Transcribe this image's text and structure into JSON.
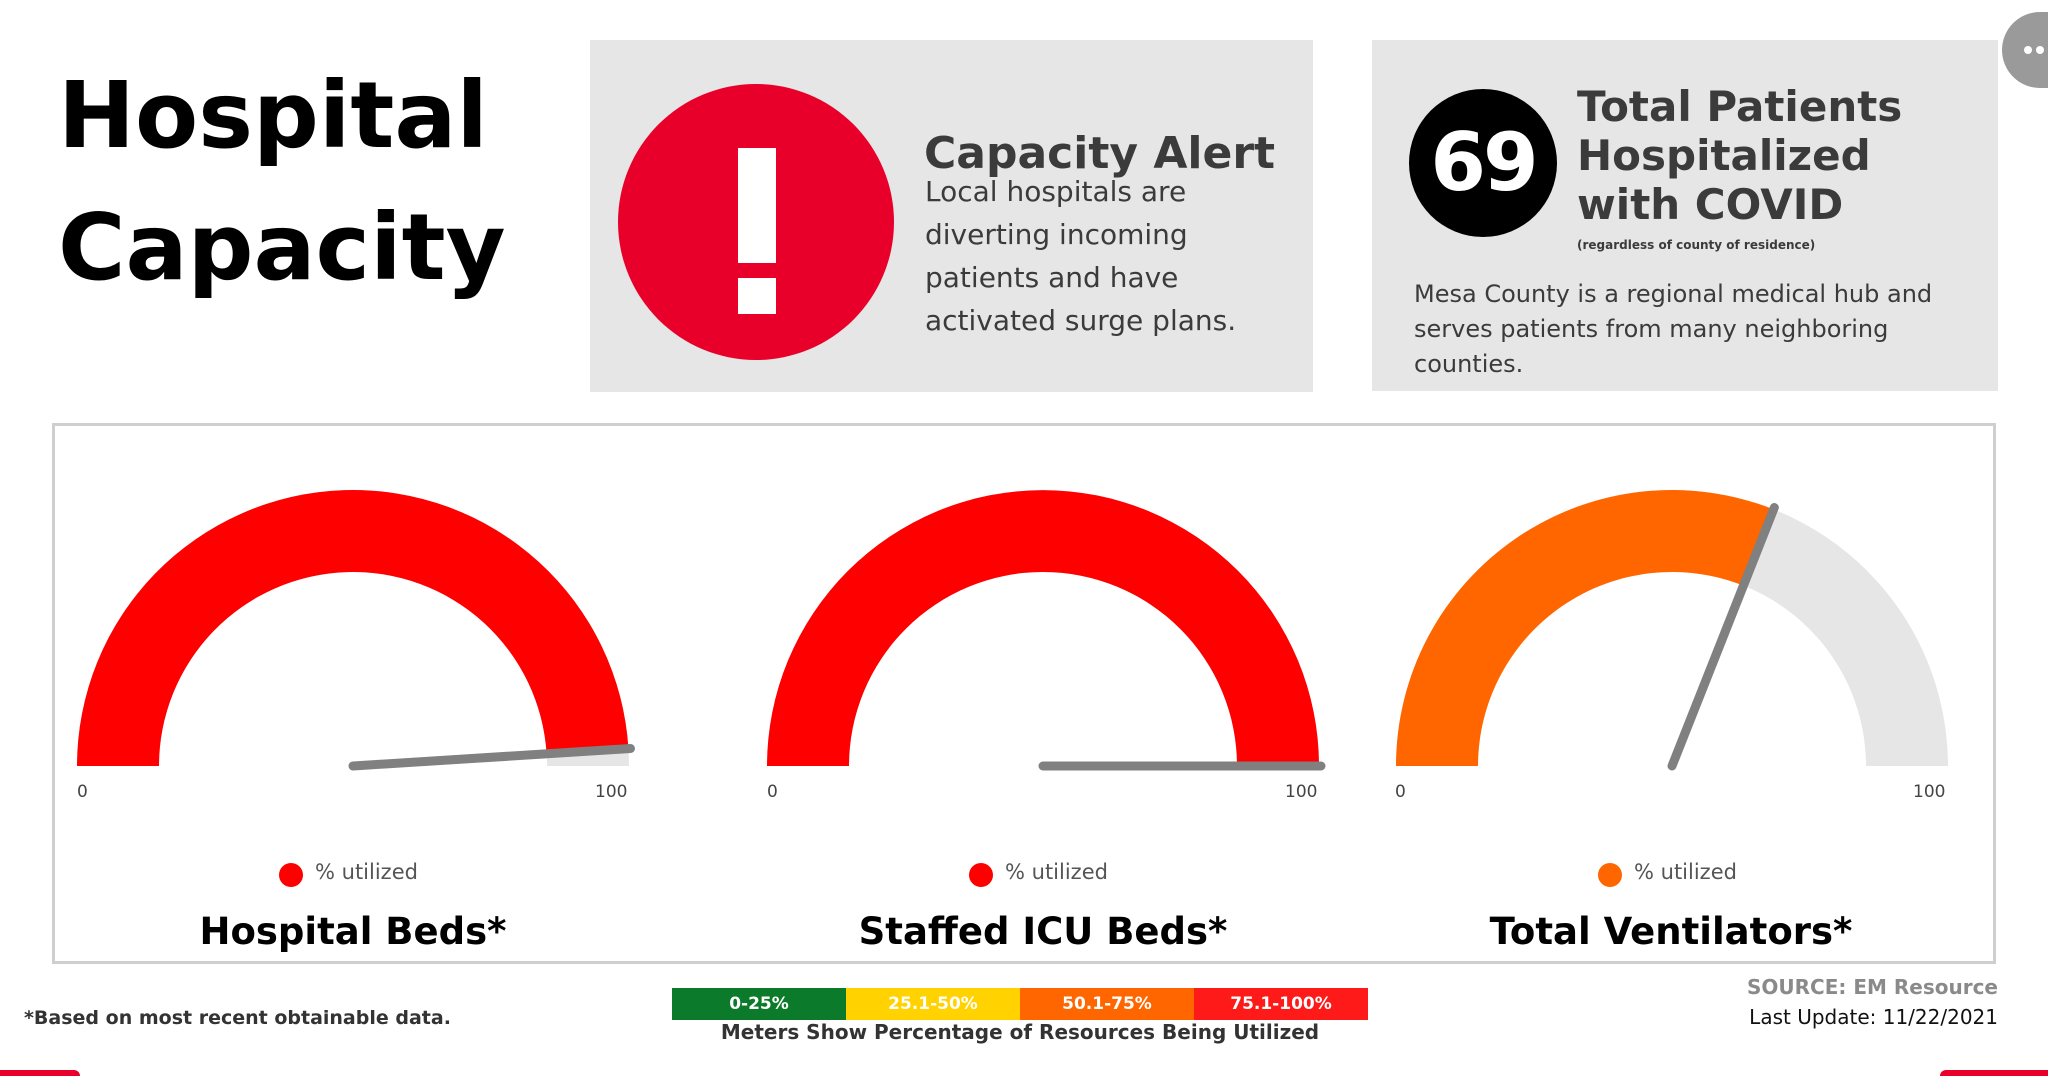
{
  "title": "Hospital Capacity",
  "alert": {
    "heading": "Capacity Alert",
    "body": "Local hospitals are diverting incoming patients and have activated surge plans.",
    "icon": "exclamation-icon",
    "color": "#e8002a"
  },
  "patients": {
    "count": "69",
    "heading": "Total Patients Hospitalized with COVID",
    "note": "(regardless of county of residence)",
    "body": "Mesa County is a regional medical hub and serves patients from many neighboring counties."
  },
  "chart_data": [
    {
      "type": "gauge",
      "title": "Hospital Beds*",
      "value": 98,
      "range": [
        0,
        100
      ],
      "min_label": "0",
      "max_label": "100",
      "legend": "% utilized",
      "color": "#ff0000"
    },
    {
      "type": "gauge",
      "title": "Staffed ICU Beds*",
      "value": 100,
      "range": [
        0,
        100
      ],
      "min_label": "0",
      "max_label": "100",
      "legend": "% utilized",
      "color": "#ff0000"
    },
    {
      "type": "gauge",
      "title": "Total Ventilators*",
      "value": 62,
      "range": [
        0,
        100
      ],
      "min_label": "0",
      "max_label": "100",
      "legend": "% utilized",
      "color": "#ff6600"
    }
  ],
  "scale": {
    "segments": [
      {
        "label": "0-25%",
        "color": "#0b7a2a"
      },
      {
        "label": "25.1-50%",
        "color": "#ffd200"
      },
      {
        "label": "50.1-75%",
        "color": "#ff6600"
      },
      {
        "label": "75.1-100%",
        "color": "#ff1a1a"
      }
    ],
    "caption": "Meters Show Percentage of Resources Being Utilized"
  },
  "footnote": "*Based on most recent obtainable data.",
  "source": "SOURCE: EM Resource",
  "last_update": "Last Update: 11/22/2021",
  "more_icon": "more-dots-icon"
}
